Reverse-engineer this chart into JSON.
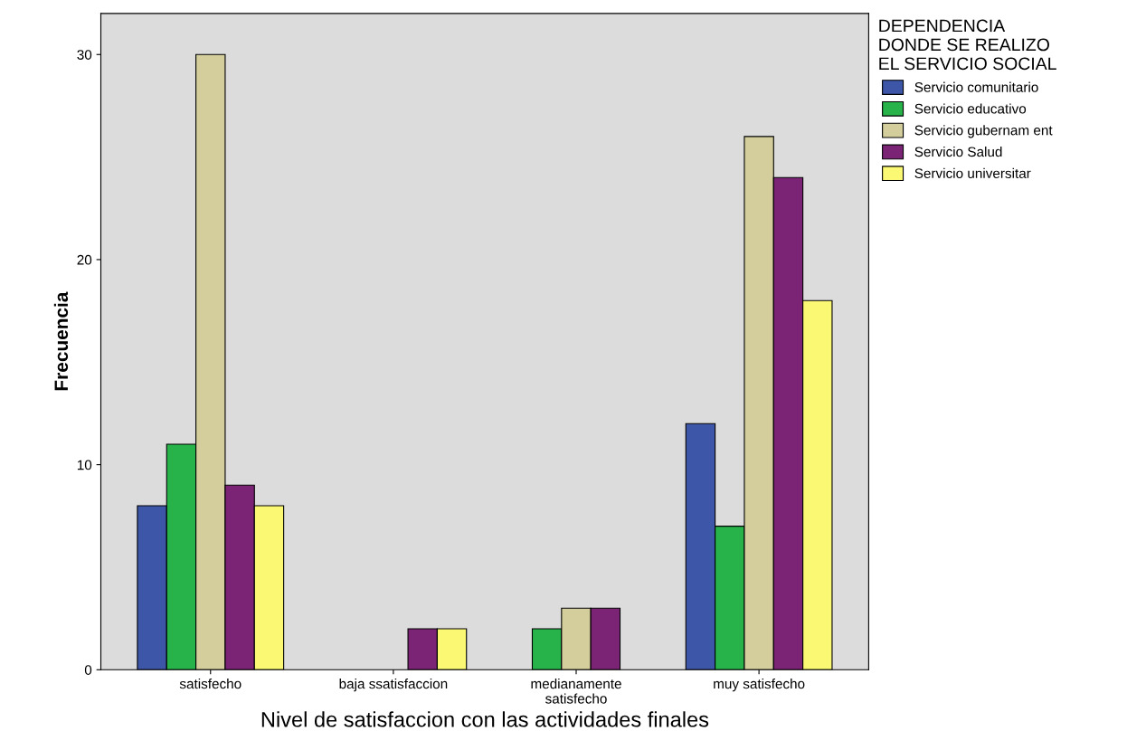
{
  "chart_data": {
    "type": "bar",
    "xlabel": "Nivel de satisfaccion con las actividades finales",
    "ylabel": "Frecuencia",
    "legend_title": "DEPENDENCIA\nDONDE SE REALIZO\nEL SERVICIO SOCIAL",
    "categories": [
      "satisfecho",
      "baja ssatisfaccion",
      "medianamente\nsatisfecho",
      "muy satisfecho"
    ],
    "series": [
      {
        "name": "Servicio comunitario",
        "color": "#3d56a8",
        "values": [
          8,
          null,
          null,
          12
        ]
      },
      {
        "name": "Servicio educativo",
        "color": "#27b24a",
        "values": [
          11,
          null,
          2,
          7
        ]
      },
      {
        "name": "Servicio gubernam ent",
        "color": "#d3ce9c",
        "values": [
          30,
          null,
          3,
          26
        ]
      },
      {
        "name": "Servicio Salud",
        "color": "#7b2475",
        "values": [
          9,
          2,
          3,
          24
        ]
      },
      {
        "name": "Servicio universitar",
        "color": "#fbf973",
        "values": [
          8,
          2,
          null,
          18
        ]
      }
    ],
    "ylim": [
      0,
      32
    ],
    "yticks": [
      0,
      10,
      20,
      30
    ],
    "grid": false,
    "legend": "top right"
  }
}
